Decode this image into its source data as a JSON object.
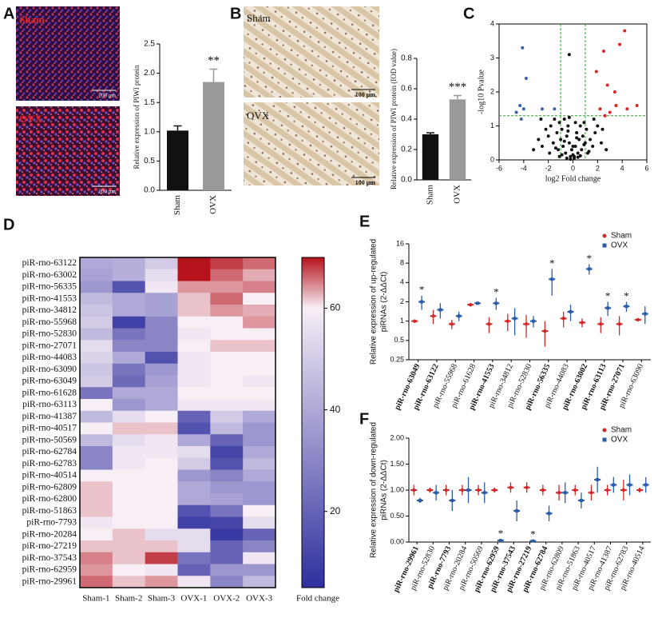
{
  "panel_labels": [
    "A",
    "B",
    "C",
    "D",
    "E",
    "F"
  ],
  "images": {
    "A": {
      "labels": [
        "Sham",
        "OVX"
      ],
      "scale_bar": "200 μm"
    },
    "B": {
      "labels": [
        "Sham",
        "OVX"
      ],
      "scale_bar": "100 μm"
    }
  },
  "chart_data": [
    {
      "type": "bar",
      "ylabel": "Relative expression of PIWI protein",
      "categories": [
        "Sham",
        "OVX"
      ],
      "values": [
        1.02,
        1.85
      ],
      "errors": [
        0.08,
        0.22
      ],
      "colors": [
        "#111111",
        "#999999"
      ],
      "annotations": [
        null,
        "**"
      ],
      "ylim": [
        0,
        2.5
      ],
      "yticks": [
        {
          "value": 0,
          "label": "0.0"
        },
        {
          "value": 0.5,
          "label": "0.5"
        },
        {
          "value": 1,
          "label": "1.0"
        },
        {
          "value": 1.5,
          "label": "1.5"
        },
        {
          "value": 2,
          "label": "2.0"
        },
        {
          "value": 2.5,
          "label": "2.5"
        }
      ]
    },
    {
      "type": "bar",
      "ylabel": "Relative expression of PIWI protein (IOD value)",
      "categories": [
        "Sham",
        "OVX"
      ],
      "values": [
        0.3,
        0.53
      ],
      "errors": [
        0.01,
        0.025
      ],
      "colors": [
        "#111111",
        "#999999"
      ],
      "annotations": [
        null,
        "***"
      ],
      "ylim": [
        0,
        0.8
      ],
      "yticks": [
        {
          "value": 0,
          "label": "0.0"
        },
        0.2,
        0.4,
        0.6,
        0.8
      ]
    },
    {
      "type": "scatter",
      "xlabel": "log2 Fold change",
      "ylabel": "-log10 Pvalue",
      "xlim": [
        -6,
        6
      ],
      "xticks": [
        -6,
        -4,
        -2,
        0,
        2,
        4,
        6
      ],
      "ylim": [
        0,
        4
      ],
      "yticks": [
        0,
        1,
        2,
        3,
        4
      ],
      "thresholds": {
        "x": [
          -1,
          1
        ],
        "y": 1.3,
        "color": "#2ca02c"
      },
      "series": [
        {
          "color": "#111111",
          "x": [
            -3.2,
            -2.8,
            -2.5,
            -2.2,
            -2,
            -1.8,
            -1.6,
            -1.5,
            -1.3,
            -1.2,
            -1.1,
            -1,
            -0.9,
            -0.8,
            -0.7,
            -0.6,
            -0.5,
            -0.4,
            -0.3,
            -0.2,
            -0.1,
            0,
            0.1,
            0.2,
            0.3,
            0.4,
            0.5,
            0.6,
            0.7,
            0.8,
            0.9,
            1,
            1.1,
            1.2,
            1.4,
            1.6,
            1.8,
            2,
            2.3,
            2.7,
            -0.5,
            -0.2,
            0.1,
            0.4,
            -1.4,
            -0.9,
            0.6,
            1.3,
            -0.3,
            0.2,
            -2.6,
            -1.9,
            1.7,
            2.4,
            -0.7,
            0.9,
            -1.1,
            0.3,
            0,
            -0.4,
            -0.3
          ],
          "values": [
            0.3,
            0.6,
            0.4,
            0.9,
            0.7,
            1.0,
            0.5,
            1.2,
            0.8,
            0.3,
            1.1,
            0.6,
            0.9,
            0.4,
            1.2,
            0.2,
            0.7,
            1.0,
            0.5,
            0.1,
            0.3,
            0.15,
            0.05,
            0.4,
            0.8,
            0.2,
            0.6,
            1.0,
            0.3,
            0.7,
            1.1,
            0.5,
            0.9,
            0.2,
            0.6,
            0.4,
            0.8,
            1.0,
            0.5,
            0.3,
            0.05,
            0.02,
            0.1,
            0.08,
            0.35,
            0.15,
            0.12,
            0.25,
            1.25,
            1.1,
            1.2,
            0.2,
            1.2,
            0.9,
            0.55,
            0.45,
            0.1,
            0.65,
            0.4,
            0.85,
            3.1
          ]
        },
        {
          "color": "#d62728",
          "x": [
            2.2,
            2.6,
            3.0,
            3.5,
            4.4,
            5.2,
            2.5,
            2.8,
            3.4,
            3.8,
            4.2,
            1.9
          ],
          "values": [
            1.5,
            1.3,
            1.4,
            1.6,
            1.5,
            1.6,
            3.2,
            2.2,
            2.0,
            3.4,
            3.8,
            2.6
          ]
        },
        {
          "color": "#3a5fb0",
          "x": [
            -4.3,
            -4.0,
            -4.6,
            -3.8,
            -4.1,
            -2.5,
            -1.5,
            -4.2
          ],
          "values": [
            1.6,
            1.5,
            1.4,
            2.4,
            3.3,
            1.5,
            1.5,
            1.2
          ]
        }
      ]
    },
    {
      "type": "heatmap",
      "rows": [
        "piR-rno-63122",
        "piR-rno-63002",
        "piR-rno-56335",
        "piR-rno-41553",
        "piR-rno-34812",
        "piR-rno-55968",
        "piR-rno-52830",
        "piR-rno-27071",
        "piR-rno-44083",
        "piR-rno-63090",
        "piR-rno-63049",
        "piR-rno-61628",
        "piR-rno-63113",
        "piR-rno-41387",
        "piR-rno-40517",
        "piR-rno-50569",
        "piR-rno-62784",
        "piR-rno-62783",
        "piR-rno-40514",
        "piR-rno-62809",
        "piR-rno-62800",
        "piR-rno-51863",
        "piR-rno-7793",
        "piR-rno-20284",
        "piR-rno-27219",
        "piR-rno-37543",
        "piR-rno-62959",
        "piR-rno-29961"
      ],
      "columns": [
        "Sham-1",
        "Sham-2",
        "Sham-3",
        "OVX-1",
        "OVX-2",
        "OVX-3"
      ],
      "values": [
        [
          40,
          42,
          50,
          72,
          68,
          66
        ],
        [
          38,
          42,
          55,
          70,
          66,
          63
        ],
        [
          35,
          15,
          58,
          64,
          64,
          65
        ],
        [
          45,
          40,
          38,
          62,
          66,
          60
        ],
        [
          48,
          40,
          38,
          62,
          64,
          63
        ],
        [
          50,
          10,
          30,
          60,
          60,
          64
        ],
        [
          45,
          25,
          30,
          58,
          60,
          60
        ],
        [
          55,
          30,
          30,
          60,
          62,
          62
        ],
        [
          52,
          40,
          15,
          58,
          60,
          60
        ],
        [
          48,
          25,
          35,
          58,
          60,
          60
        ],
        [
          50,
          22,
          38,
          58,
          60,
          58
        ],
        [
          25,
          40,
          40,
          60,
          60,
          60
        ],
        [
          60,
          35,
          40,
          58,
          58,
          58
        ],
        [
          45,
          55,
          60,
          20,
          50,
          40
        ],
        [
          60,
          62,
          62,
          15,
          45,
          35
        ],
        [
          45,
          55,
          58,
          40,
          20,
          35
        ],
        [
          30,
          58,
          58,
          55,
          12,
          40
        ],
        [
          30,
          58,
          60,
          50,
          15,
          45
        ],
        [
          60,
          60,
          60,
          35,
          30,
          40
        ],
        [
          62,
          60,
          60,
          40,
          35,
          35
        ],
        [
          62,
          60,
          60,
          40,
          38,
          35
        ],
        [
          62,
          60,
          60,
          15,
          25,
          60
        ],
        [
          58,
          60,
          60,
          10,
          12,
          55
        ],
        [
          60,
          62,
          55,
          55,
          8,
          20
        ],
        [
          62,
          62,
          62,
          55,
          20,
          30
        ],
        [
          65,
          62,
          68,
          25,
          20,
          58
        ],
        [
          64,
          60,
          58,
          20,
          35,
          35
        ],
        [
          66,
          62,
          64,
          58,
          30,
          45
        ]
      ],
      "color_stops": [
        [
          5,
          "#2f2f9e"
        ],
        [
          60,
          "#f7eef6"
        ],
        [
          70,
          "#b5121b"
        ]
      ],
      "colorbar_ticks": [
        20,
        40,
        60
      ],
      "colorbar_label": "Fold change"
    },
    {
      "type": "dot",
      "log_scale": true,
      "ylabel": [
        "Relative expression of up-regulated",
        "piRNAs (2-ΔΔCt)"
      ],
      "ylim": [
        0.25,
        16
      ],
      "yticks": [
        0.25,
        0.5,
        1,
        2,
        4,
        8,
        16
      ],
      "categories": [
        "piR-rno-63049",
        "piR-rno-63122",
        "piR-rno-55968",
        "piR-rno-61628",
        "piR-rno-41553",
        "piR-rno-34812",
        "piR-rno-52830",
        "piR-rno-56335",
        "piR-rno-44083",
        "piR-rno-63002",
        "piR-rno-63113",
        "piR-rno-27071",
        "piR-rno-63090"
      ],
      "bold": [
        true,
        true,
        false,
        false,
        true,
        false,
        false,
        true,
        false,
        true,
        true,
        true,
        false
      ],
      "significance": [
        "*",
        null,
        null,
        null,
        "*",
        null,
        null,
        "*",
        null,
        "*",
        "*",
        "*",
        null
      ],
      "series": [
        {
          "name": "Sham",
          "color": "#d62728",
          "values": [
            1.0,
            1.2,
            0.9,
            1.8,
            0.9,
            1.0,
            0.9,
            0.7,
            1.1,
            0.95,
            0.9,
            0.9,
            1.05
          ],
          "errors": [
            0.05,
            0.3,
            0.15,
            0.1,
            0.25,
            0.3,
            0.35,
            0.3,
            0.3,
            0.15,
            0.25,
            0.3,
            0.05
          ]
        },
        {
          "name": "OVX",
          "color": "#2a5caa",
          "values": [
            2.0,
            1.5,
            1.2,
            1.9,
            1.9,
            1.1,
            1.0,
            4.5,
            1.4,
            6.5,
            1.6,
            1.7,
            1.3
          ],
          "errors": [
            0.5,
            0.4,
            0.2,
            0.1,
            0.4,
            0.5,
            0.2,
            2.0,
            0.4,
            1.2,
            0.4,
            0.3,
            0.4
          ]
        }
      ]
    },
    {
      "type": "dot",
      "log_scale": false,
      "ylabel": [
        "Relative expression of down-regulated",
        "piRNAs (2-ΔΔCt)"
      ],
      "ylim": [
        0,
        2
      ],
      "yticks": [
        {
          "value": 0,
          "label": "0.00"
        },
        {
          "value": 0.5,
          "label": "0.50"
        },
        {
          "value": 1,
          "label": "1.00"
        },
        {
          "value": 1.5,
          "label": "1.50"
        },
        {
          "value": 2,
          "label": "2.00"
        }
      ],
      "categories": [
        "piR-rno-29961",
        "piR-rno-52830",
        "piR-rno-7793",
        "piR-rno-20284",
        "piR-rno-50569",
        "piR-rno-62959",
        "piR-rno-37543",
        "piR-rno-27219",
        "piR-rno-62784",
        "piR-rno-62809",
        "piR-rno-51863",
        "piR-rno-40517",
        "piR-rno-41387",
        "piR-rno-62783",
        "piR-rno-40514"
      ],
      "bold": [
        true,
        false,
        true,
        false,
        false,
        true,
        true,
        true,
        true,
        false,
        false,
        false,
        false,
        false,
        false
      ],
      "significance": [
        null,
        null,
        null,
        null,
        null,
        "*",
        null,
        "*",
        null,
        null,
        null,
        null,
        null,
        null,
        null
      ],
      "series": [
        {
          "name": "Sham",
          "color": "#d62728",
          "values": [
            1.0,
            1.0,
            1.0,
            1.0,
            1.0,
            1.0,
            1.05,
            1.05,
            1.0,
            0.95,
            1.0,
            0.95,
            1.0,
            1.0,
            1.0
          ],
          "errors": [
            0.1,
            0.05,
            0.1,
            0.1,
            0.1,
            0.05,
            0.1,
            0.1,
            0.1,
            0.15,
            0.1,
            0.15,
            0.1,
            0.2,
            0.05
          ]
        },
        {
          "name": "OVX",
          "color": "#2a5caa",
          "values": [
            0.8,
            0.95,
            0.8,
            1.0,
            0.95,
            0.03,
            0.6,
            0.02,
            0.55,
            0.95,
            0.8,
            1.2,
            1.1,
            1.1,
            1.1
          ],
          "errors": [
            0.05,
            0.15,
            0.2,
            0.25,
            0.2,
            0.02,
            0.2,
            0.02,
            0.15,
            0.2,
            0.15,
            0.25,
            0.15,
            0.2,
            0.15
          ]
        }
      ]
    }
  ]
}
